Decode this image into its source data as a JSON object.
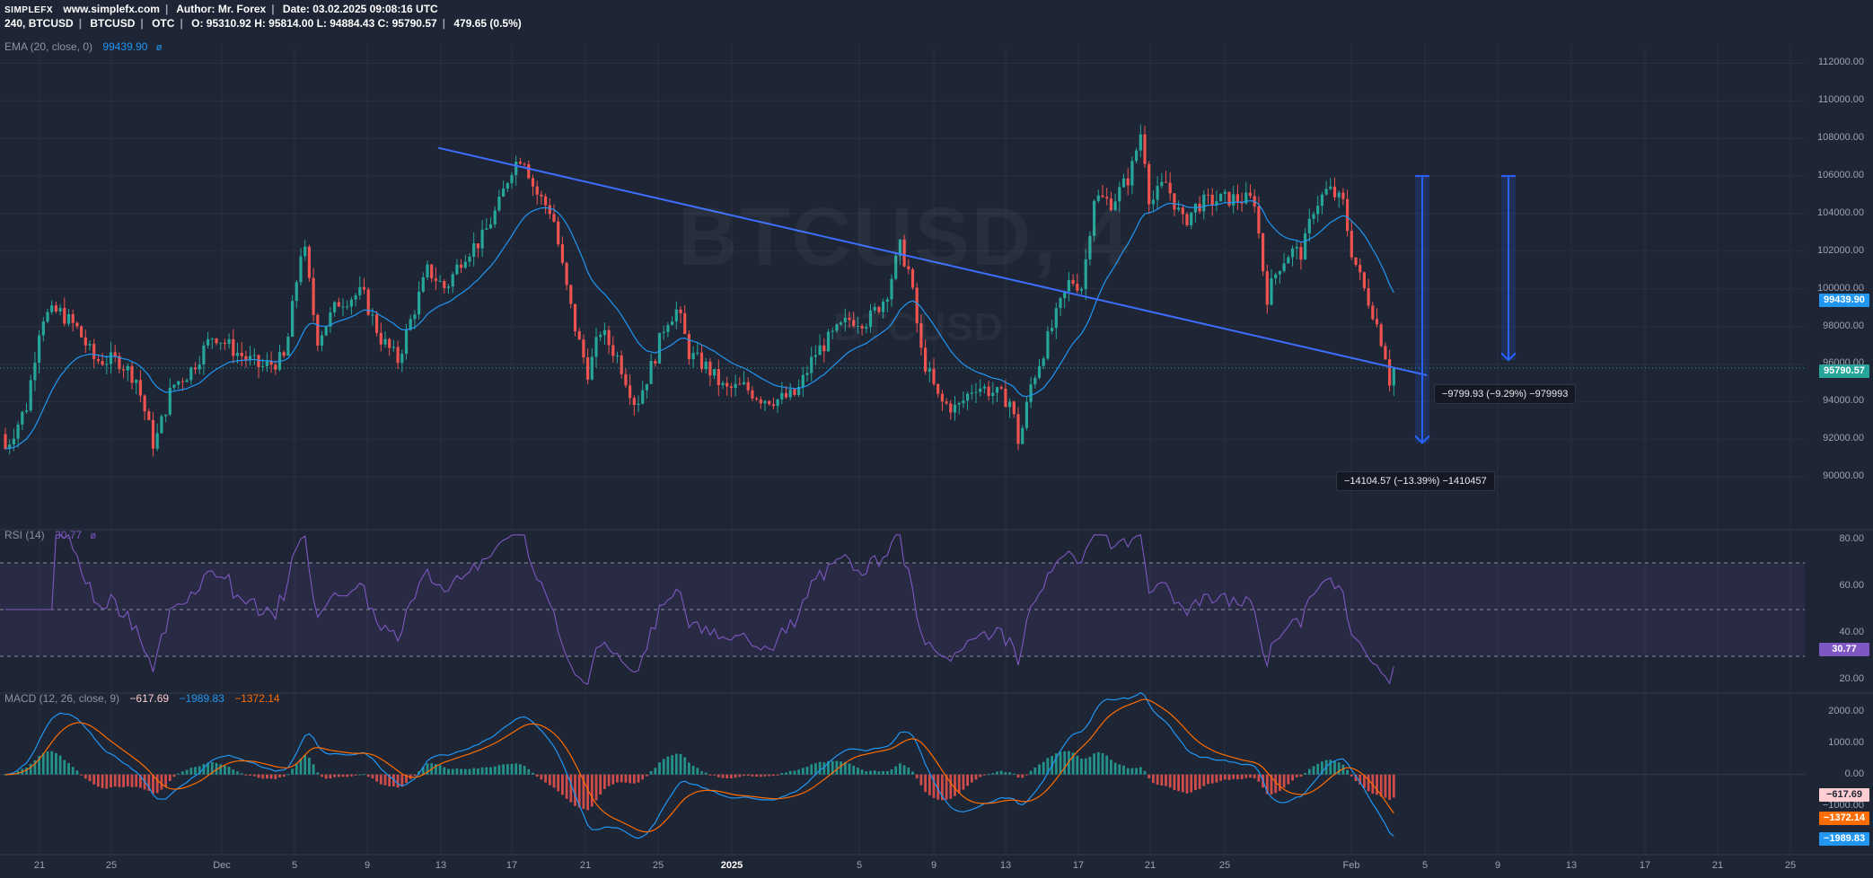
{
  "header": {
    "logo": "SIMPLEFX",
    "site": "www.simplefx.com",
    "author": "Author: Mr. Forex",
    "date": "Date: 03.02.2025 09:08:16 UTC",
    "interval": "240, BTCUSD",
    "symbol": "BTCUSD",
    "market": "OTC",
    "ohlc": "O: 95310.92 H: 95814.00 L: 94884.43 C: 95790.57",
    "change": "479.65 (0.5%)"
  },
  "watermark": {
    "symbol_interval": "BTCUSD, 4",
    "symbol": "BTCUSD"
  },
  "indicators": {
    "ema": {
      "label": "EMA (20, close, 0)",
      "value": "99439.90",
      "color": "#2196f3"
    },
    "rsi": {
      "label": "RSI (14)",
      "value": "30.77",
      "color": "#7e57c2"
    },
    "macd": {
      "label": "MACD (12, 26, close, 9)",
      "hist": "−617.69",
      "macd": "−1989.83",
      "signal": "−1372.14",
      "macd_color": "#2196f3",
      "signal_color": "#ff6d00"
    }
  },
  "price_axis": {
    "labels": [
      "112000.00",
      "110000.00",
      "108000.00",
      "106000.00",
      "104000.00",
      "102000.00",
      "100000.00",
      "98000.00",
      "96000.00",
      "94000.00",
      "92000.00",
      "90000.00"
    ],
    "ema_tag": "99439.90",
    "last_tag": "95790.57"
  },
  "rsi_axis": {
    "labels": [
      "80.00",
      "60.00",
      "40.00",
      "20.00"
    ],
    "tag": "30.77"
  },
  "macd_axis": {
    "labels": [
      "2000.00",
      "1000.00",
      "0.00",
      "−1000.00"
    ],
    "hist_tag": "−617.69",
    "signal_tag": "−1372.14",
    "macd_tag": "−1989.83"
  },
  "time_axis": {
    "labels": [
      {
        "text": "21"
      },
      {
        "text": "25"
      },
      {
        "text": "Dec"
      },
      {
        "text": "5"
      },
      {
        "text": "9"
      },
      {
        "text": "13"
      },
      {
        "text": "17"
      },
      {
        "text": "21"
      },
      {
        "text": "25"
      },
      {
        "text": "2025",
        "bold": true
      },
      {
        "text": "5"
      },
      {
        "text": "9"
      },
      {
        "text": "13"
      },
      {
        "text": "17"
      },
      {
        "text": "21"
      },
      {
        "text": "25"
      },
      {
        "text": "Feb"
      },
      {
        "text": "5"
      },
      {
        "text": "9"
      },
      {
        "text": "13"
      },
      {
        "text": "17"
      },
      {
        "text": "21"
      },
      {
        "text": "25"
      }
    ]
  },
  "measurements": {
    "short": "−9799.93 (−9.29%) −979993",
    "long": "−14104.57 (−13.39%) −1410457"
  },
  "chart_data": {
    "type": "candlestick",
    "symbol": "BTCUSD",
    "interval": "240",
    "ylim": [
      89000,
      112500
    ],
    "up_color": "#26a69a",
    "down_color": "#ef5350",
    "trend_color": "#3d6eff",
    "close_path": [
      [
        0,
        91500
      ],
      [
        18,
        93800
      ],
      [
        30,
        98500
      ],
      [
        45,
        98800
      ],
      [
        60,
        97900
      ],
      [
        75,
        96200
      ],
      [
        95,
        96200
      ],
      [
        110,
        95200
      ],
      [
        125,
        91600
      ],
      [
        140,
        94800
      ],
      [
        155,
        95600
      ],
      [
        175,
        97600
      ],
      [
        195,
        96600
      ],
      [
        215,
        95800
      ],
      [
        235,
        96300
      ],
      [
        250,
        102700
      ],
      [
        262,
        97300
      ],
      [
        280,
        99300
      ],
      [
        300,
        99800
      ],
      [
        315,
        97400
      ],
      [
        330,
        96200
      ],
      [
        340,
        98200
      ],
      [
        355,
        101000
      ],
      [
        370,
        100000
      ],
      [
        385,
        101800
      ],
      [
        400,
        102600
      ],
      [
        415,
        104500
      ],
      [
        425,
        106400
      ],
      [
        435,
        107200
      ],
      [
        445,
        105200
      ],
      [
        460,
        104000
      ],
      [
        470,
        100500
      ],
      [
        480,
        97600
      ],
      [
        490,
        95500
      ],
      [
        500,
        97800
      ],
      [
        515,
        96300
      ],
      [
        530,
        93800
      ],
      [
        545,
        96200
      ],
      [
        555,
        98300
      ],
      [
        565,
        98900
      ],
      [
        575,
        96500
      ],
      [
        590,
        95800
      ],
      [
        605,
        94600
      ],
      [
        620,
        94800
      ],
      [
        635,
        94200
      ],
      [
        650,
        94100
      ],
      [
        665,
        94400
      ],
      [
        680,
        96500
      ],
      [
        695,
        97500
      ],
      [
        710,
        98400
      ],
      [
        725,
        98300
      ],
      [
        740,
        99600
      ],
      [
        752,
        102200
      ],
      [
        760,
        100800
      ],
      [
        770,
        96500
      ],
      [
        785,
        94000
      ],
      [
        800,
        93600
      ],
      [
        815,
        94900
      ],
      [
        830,
        94500
      ],
      [
        845,
        94000
      ],
      [
        852,
        91700
      ],
      [
        862,
        94900
      ],
      [
        880,
        98000
      ],
      [
        895,
        100500
      ],
      [
        905,
        100100
      ],
      [
        915,
        104900
      ],
      [
        930,
        104600
      ],
      [
        945,
        106000
      ],
      [
        955,
        108500
      ],
      [
        962,
        104500
      ],
      [
        975,
        105700
      ],
      [
        990,
        103500
      ],
      [
        1002,
        104500
      ],
      [
        1015,
        104700
      ],
      [
        1030,
        104800
      ],
      [
        1050,
        104700
      ],
      [
        1060,
        99500
      ],
      [
        1070,
        101200
      ],
      [
        1080,
        102000
      ],
      [
        1090,
        101900
      ],
      [
        1100,
        104400
      ],
      [
        1112,
        105300
      ],
      [
        1125,
        104500
      ],
      [
        1130,
        102300
      ],
      [
        1140,
        100300
      ],
      [
        1150,
        98700
      ],
      [
        1160,
        96500
      ],
      [
        1165,
        94500
      ],
      [
        1169,
        95790
      ]
    ],
    "ema": {
      "period": 20,
      "last": 99439.9
    },
    "rsi": {
      "period": 14,
      "last": 30.77,
      "levels": [
        70,
        50,
        30
      ],
      "ylim": [
        15,
        85
      ]
    },
    "macd": {
      "fast": 12,
      "slow": 26,
      "signal": 9,
      "hist": -617.69,
      "macd": -1989.83,
      "signal_value": -1372.14,
      "ylim": [
        -2500,
        2600
      ]
    },
    "trendline": [
      [
        367,
        107500
      ],
      [
        1195,
        95400
      ]
    ],
    "measure_arrows": [
      {
        "from": 106000,
        "to": 91800
      },
      {
        "from": 106000,
        "to": 96200
      }
    ],
    "price_line": 95790.57
  }
}
